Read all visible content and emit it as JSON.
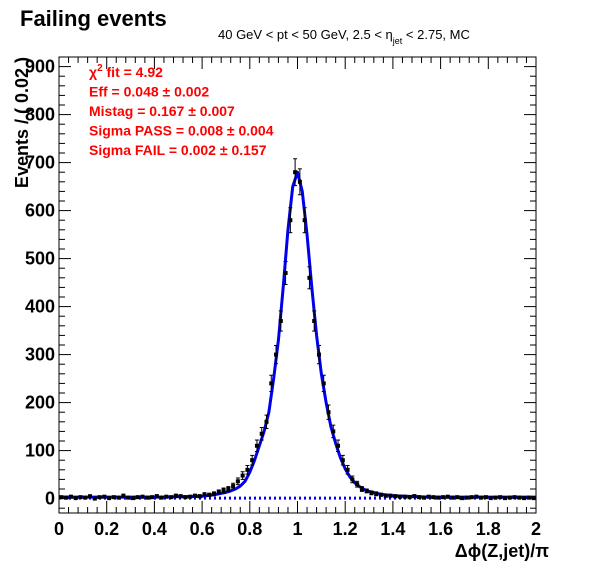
{
  "chart_data": {
    "type": "scatter",
    "title": "Failing events",
    "subtitle_parts": {
      "prefix": "40 GeV < pt < 50 GeV, 2.5 < η",
      "subscript": "jet",
      "suffix": " < 2.75, MC"
    },
    "xlabel": "Δϕ(Z,jet)/π",
    "ylabel": "Events / ( 0.02 )",
    "xlim": [
      0,
      2
    ],
    "ylim": [
      -30,
      920
    ],
    "x_ticks": [
      "0",
      "0.2",
      "0.4",
      "0.6",
      "0.8",
      "1",
      "1.2",
      "1.4",
      "1.6",
      "1.8",
      "2"
    ],
    "y_ticks": [
      "0",
      "100",
      "200",
      "300",
      "400",
      "500",
      "600",
      "700",
      "800",
      "900"
    ],
    "annotations": [
      {
        "label": "χ",
        "sup": "2",
        "rest": " fit = 4.92"
      },
      {
        "label": "Eff = 0.048 ",
        "sup": "",
        "rest": "± 0.002"
      },
      {
        "label": "Mistag = 0.167 ",
        "sup": "",
        "rest": "± 0.007"
      },
      {
        "label": "Sigma PASS = 0.008 ",
        "sup": "",
        "rest": "± 0.004"
      },
      {
        "label": "Sigma FAIL = 0.002 ",
        "sup": "",
        "rest": "± 0.157"
      }
    ],
    "colors": {
      "data": "#000000",
      "fit": "#0000ee",
      "background_fit": "#0000ee",
      "annotation": "#ff0000"
    },
    "grid": false,
    "legend": "none",
    "series": [
      {
        "kind": "data-points",
        "x": [
          0.01,
          0.03,
          0.05,
          0.07,
          0.09,
          0.11,
          0.13,
          0.15,
          0.17,
          0.19,
          0.21,
          0.23,
          0.25,
          0.27,
          0.29,
          0.31,
          0.33,
          0.35,
          0.37,
          0.39,
          0.41,
          0.43,
          0.45,
          0.47,
          0.49,
          0.51,
          0.53,
          0.55,
          0.57,
          0.59,
          0.61,
          0.63,
          0.65,
          0.67,
          0.69,
          0.71,
          0.73,
          0.75,
          0.77,
          0.79,
          0.81,
          0.83,
          0.85,
          0.87,
          0.89,
          0.91,
          0.93,
          0.95,
          0.97,
          0.99,
          1.01,
          1.03,
          1.05,
          1.07,
          1.09,
          1.11,
          1.13,
          1.15,
          1.17,
          1.19,
          1.21,
          1.23,
          1.25,
          1.27,
          1.29,
          1.31,
          1.33,
          1.35,
          1.37,
          1.39,
          1.41,
          1.43,
          1.45,
          1.47,
          1.49,
          1.51,
          1.53,
          1.55,
          1.57,
          1.59,
          1.61,
          1.63,
          1.65,
          1.67,
          1.69,
          1.71,
          1.73,
          1.75,
          1.77,
          1.79,
          1.81,
          1.83,
          1.85,
          1.87,
          1.89,
          1.91,
          1.93,
          1.95,
          1.97,
          1.99
        ],
        "y": [
          3,
          2,
          4,
          1,
          3,
          2,
          5,
          0,
          3,
          4,
          1,
          3,
          2,
          6,
          2,
          1,
          3,
          4,
          2,
          3,
          5,
          2,
          4,
          3,
          6,
          5,
          3,
          4,
          6,
          5,
          9,
          8,
          10,
          14,
          17,
          20,
          26,
          36,
          48,
          60,
          80,
          110,
          135,
          160,
          240,
          300,
          370,
          470,
          580,
          680,
          660,
          580,
          460,
          370,
          300,
          240,
          180,
          140,
          110,
          80,
          60,
          40,
          30,
          20,
          16,
          12,
          10,
          8,
          6,
          6,
          5,
          4,
          4,
          3,
          5,
          3,
          2,
          4,
          3,
          2,
          3,
          4,
          2,
          3,
          1,
          2,
          3,
          4,
          2,
          3,
          1,
          2,
          3,
          1,
          2,
          3,
          2,
          1,
          2,
          1
        ],
        "err": [
          2,
          2,
          2,
          1,
          2,
          2,
          2,
          1,
          2,
          2,
          1,
          2,
          2,
          3,
          2,
          1,
          2,
          2,
          2,
          2,
          3,
          2,
          2,
          2,
          3,
          3,
          2,
          2,
          3,
          3,
          3,
          3,
          4,
          4,
          5,
          5,
          6,
          7,
          8,
          9,
          10,
          12,
          13,
          14,
          17,
          19,
          21,
          24,
          26,
          28,
          27,
          26,
          23,
          21,
          19,
          17,
          15,
          13,
          12,
          10,
          9,
          7,
          6,
          5,
          4,
          4,
          4,
          3,
          3,
          3,
          3,
          2,
          2,
          2,
          3,
          2,
          2,
          2,
          2,
          2,
          2,
          2,
          2,
          2,
          1,
          2,
          2,
          2,
          2,
          2,
          1,
          2,
          2,
          1,
          2,
          2,
          2,
          1,
          2,
          1
        ]
      },
      {
        "kind": "fit-curve",
        "x": [
          0,
          0.05,
          0.1,
          0.15,
          0.2,
          0.25,
          0.3,
          0.35,
          0.4,
          0.45,
          0.5,
          0.55,
          0.6,
          0.65,
          0.7,
          0.72,
          0.74,
          0.76,
          0.78,
          0.8,
          0.82,
          0.84,
          0.86,
          0.88,
          0.9,
          0.92,
          0.94,
          0.96,
          0.98,
          1.0,
          1.02,
          1.04,
          1.06,
          1.08,
          1.1,
          1.12,
          1.14,
          1.16,
          1.18,
          1.2,
          1.22,
          1.24,
          1.26,
          1.28,
          1.3,
          1.35,
          1.4,
          1.45,
          1.5,
          1.55,
          1.6,
          1.65,
          1.7,
          1.75,
          1.8,
          1.85,
          1.9,
          1.95,
          2.0
        ],
        "y": [
          3,
          3,
          3,
          3,
          3,
          3,
          3,
          3,
          3,
          3,
          4,
          4,
          5,
          8,
          13,
          16,
          20,
          26,
          36,
          55,
          80,
          110,
          140,
          180,
          250,
          330,
          440,
          560,
          650,
          680,
          640,
          550,
          440,
          340,
          260,
          200,
          150,
          115,
          85,
          62,
          45,
          33,
          25,
          19,
          15,
          9,
          6,
          5,
          4,
          3,
          3,
          3,
          3,
          3,
          3,
          3,
          3,
          3,
          3
        ]
      },
      {
        "kind": "background-curve",
        "x": [
          0,
          2
        ],
        "y": [
          1,
          1
        ]
      }
    ]
  }
}
